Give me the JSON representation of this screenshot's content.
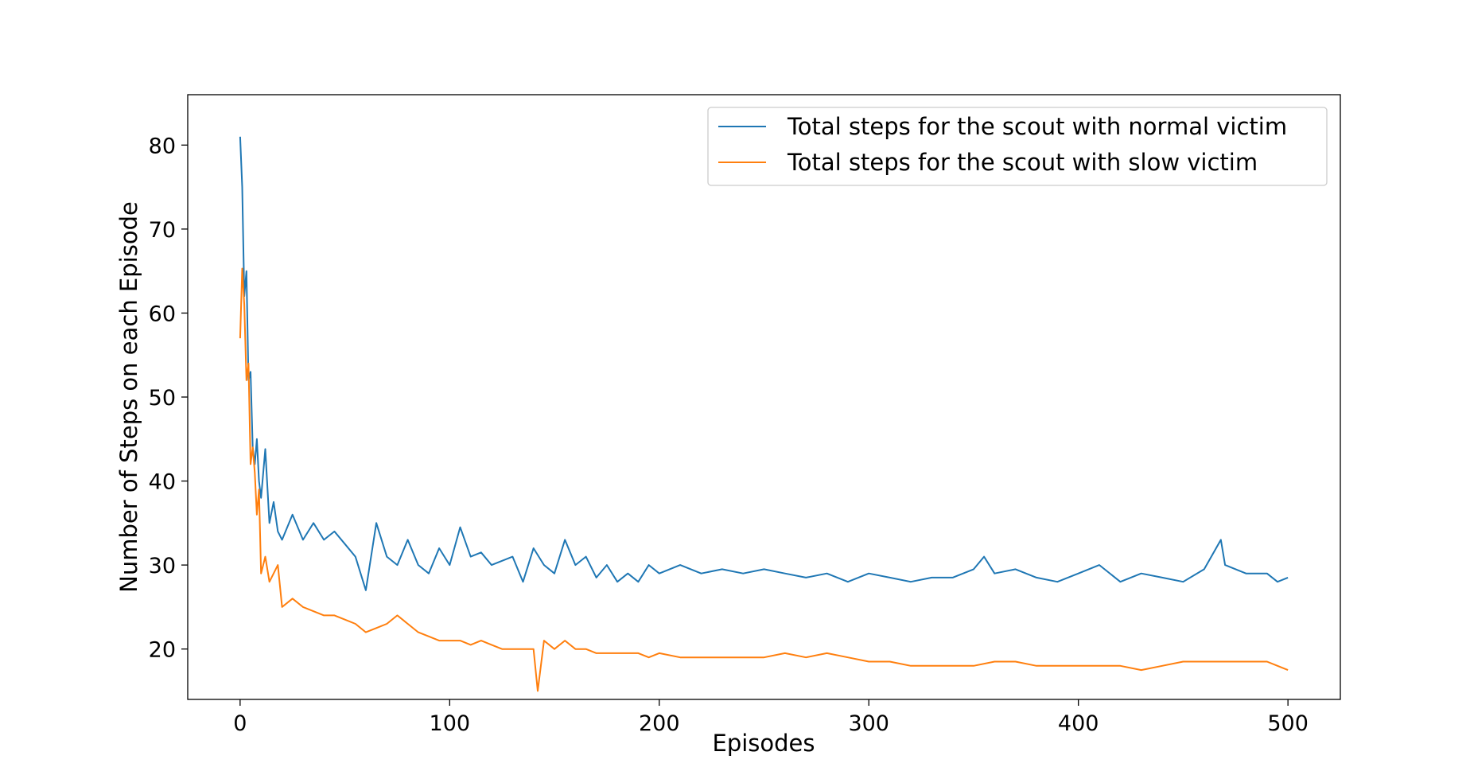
{
  "chart_data": {
    "type": "line",
    "xlabel": "Episodes",
    "ylabel": "Number of Steps on each Episode",
    "xlim": [
      -25,
      525
    ],
    "ylim": [
      14,
      86
    ],
    "xticks": [
      0,
      100,
      200,
      300,
      400,
      500
    ],
    "yticks": [
      20,
      30,
      40,
      50,
      60,
      70,
      80
    ],
    "grid": false,
    "legend_position": "upper right",
    "series": [
      {
        "name": "Total steps for the scout with normal victim",
        "color": "#1f77b4",
        "x": [
          0,
          1,
          2,
          3,
          4,
          5,
          6,
          7,
          8,
          9,
          10,
          12,
          14,
          16,
          18,
          20,
          25,
          30,
          35,
          40,
          45,
          50,
          55,
          60,
          65,
          70,
          75,
          80,
          85,
          90,
          95,
          100,
          105,
          110,
          115,
          120,
          125,
          130,
          135,
          140,
          145,
          150,
          155,
          160,
          165,
          170,
          175,
          180,
          185,
          190,
          195,
          200,
          210,
          220,
          230,
          240,
          250,
          260,
          270,
          280,
          290,
          300,
          310,
          320,
          330,
          340,
          350,
          355,
          360,
          370,
          380,
          390,
          400,
          410,
          420,
          430,
          440,
          450,
          460,
          468,
          470,
          480,
          490,
          495,
          500
        ],
        "y": [
          81,
          75,
          62,
          65,
          52,
          53,
          44,
          42,
          45,
          40,
          38,
          43.8,
          35,
          37.5,
          34,
          33,
          36,
          33,
          35,
          33,
          34,
          32.5,
          31,
          27,
          35,
          31,
          30,
          33,
          30,
          29,
          32,
          30,
          34.5,
          31,
          31.5,
          30,
          30.5,
          31,
          28,
          32,
          30,
          29,
          33,
          30,
          31,
          28.5,
          30,
          28,
          29,
          28,
          30,
          29,
          30,
          29,
          29.5,
          29,
          29.5,
          29,
          28.5,
          29,
          28,
          29,
          28.5,
          28,
          28.5,
          28.5,
          29.5,
          31,
          29,
          29.5,
          28.5,
          28,
          29,
          30,
          28,
          29,
          28.5,
          28,
          29.5,
          33,
          30,
          29,
          29,
          28,
          28.5
        ]
      },
      {
        "name": "Total steps for the scout with slow victim",
        "color": "#ff7f0e",
        "x": [
          0,
          1,
          2,
          3,
          4,
          5,
          6,
          7,
          8,
          9,
          10,
          12,
          14,
          16,
          18,
          20,
          25,
          30,
          35,
          40,
          45,
          50,
          55,
          60,
          65,
          70,
          75,
          80,
          85,
          90,
          95,
          100,
          105,
          110,
          115,
          120,
          125,
          130,
          135,
          140,
          142,
          145,
          150,
          155,
          160,
          165,
          170,
          175,
          180,
          185,
          190,
          195,
          200,
          210,
          220,
          230,
          240,
          250,
          260,
          270,
          280,
          290,
          300,
          310,
          320,
          330,
          340,
          350,
          360,
          370,
          380,
          390,
          400,
          410,
          420,
          430,
          440,
          450,
          460,
          470,
          480,
          490,
          495,
          500
        ],
        "y": [
          57,
          65.3,
          61,
          52,
          54,
          42,
          44,
          41,
          36,
          39,
          29,
          31,
          28,
          29,
          30,
          25,
          26,
          25,
          24.5,
          24,
          24,
          23.5,
          23,
          22,
          22.5,
          23,
          24,
          23,
          22,
          21.5,
          21,
          21,
          21,
          20.5,
          21,
          20.5,
          20,
          20,
          20,
          20,
          15,
          21,
          20,
          21,
          20,
          20,
          19.5,
          19.5,
          19.5,
          19.5,
          19.5,
          19,
          19.5,
          19,
          19,
          19,
          19,
          19,
          19.5,
          19,
          19.5,
          19,
          18.5,
          18.5,
          18,
          18,
          18,
          18,
          18.5,
          18.5,
          18,
          18,
          18,
          18,
          18,
          17.5,
          18,
          18.5,
          18.5,
          18.5,
          18.5,
          18.5,
          18,
          17.5
        ]
      }
    ]
  }
}
